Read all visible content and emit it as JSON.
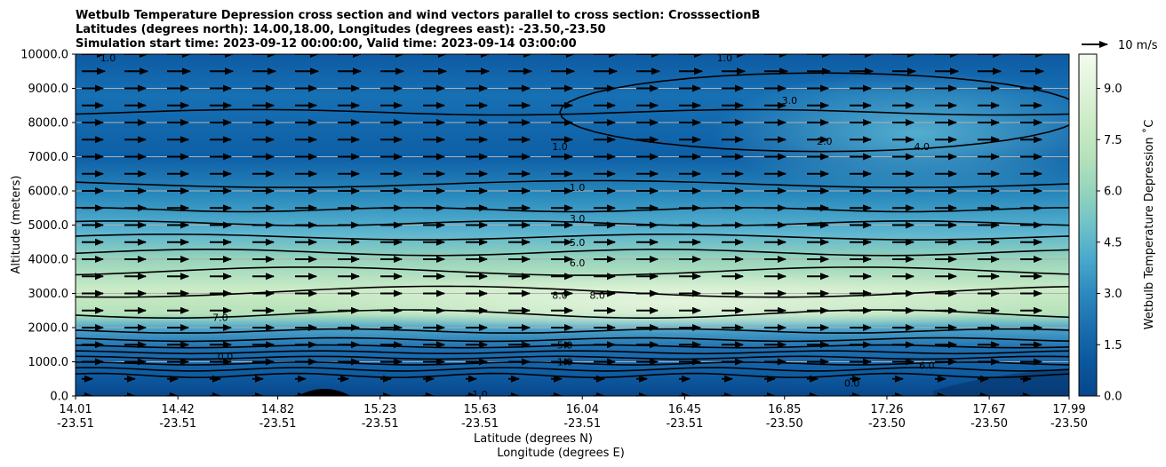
{
  "chart_data": {
    "type": "contour",
    "title_lines": [
      "Wetbulb Temperature Depression cross section and wind vectors parallel to cross section: CrosssectionB",
      "Latitudes (degrees north): 14.00,18.00, Longitudes (degrees east): -23.50,-23.50",
      "Simulation start time: 2023-09-12 00:00:00, Valid time: 2023-09-14 03:00:00"
    ],
    "ylabel": "Altitude (meters)",
    "xlabel_lat": "Latitude (degrees N)",
    "xlabel_lon": "Longitude (degrees E)",
    "ylim": [
      0,
      10000
    ],
    "yticks": [
      "0.0",
      "1000.0",
      "2000.0",
      "3000.0",
      "4000.0",
      "5000.0",
      "6000.0",
      "7000.0",
      "8000.0",
      "9000.0",
      "10000.0"
    ],
    "xticks_lat": [
      "14.01",
      "14.42",
      "14.82",
      "15.23",
      "15.63",
      "16.04",
      "16.45",
      "16.85",
      "17.26",
      "17.67",
      "17.99"
    ],
    "xticks_lon": [
      "-23.51",
      "-23.51",
      "-23.51",
      "-23.51",
      "-23.51",
      "-23.51",
      "-23.51",
      "-23.50",
      "-23.50",
      "-23.50",
      "-23.50"
    ],
    "grid": "horizontal",
    "colorbar": {
      "label": "Wetbulb Temperature Depression ˚C",
      "ticks": [
        "0.0",
        "1.5",
        "3.0",
        "4.5",
        "6.0",
        "7.5",
        "9.0"
      ],
      "range": [
        0,
        10
      ]
    },
    "quiver_key": "10 m/s",
    "contour_labels": [
      {
        "text": "1.0",
        "x": 14.14,
        "y": 9900
      },
      {
        "text": "1.0",
        "x": 15.95,
        "y": 7300
      },
      {
        "text": "1.0",
        "x": 16.02,
        "y": 6100
      },
      {
        "text": "3.0",
        "x": 16.02,
        "y": 5200
      },
      {
        "text": "5.0",
        "x": 16.02,
        "y": 4500
      },
      {
        "text": "6.0",
        "x": 16.02,
        "y": 3900
      },
      {
        "text": "8.0",
        "x": 15.95,
        "y": 2950
      },
      {
        "text": "8.0",
        "x": 16.1,
        "y": 2950
      },
      {
        "text": "7.0",
        "x": 14.59,
        "y": 2300
      },
      {
        "text": "2.0",
        "x": 17.01,
        "y": 7450
      },
      {
        "text": "3.0",
        "x": 16.87,
        "y": 8650
      },
      {
        "text": "4.0",
        "x": 17.4,
        "y": 7300
      },
      {
        "text": "1.0",
        "x": 16.61,
        "y": 9900
      },
      {
        "text": "5.0",
        "x": 15.97,
        "y": 1500
      },
      {
        "text": "1.0",
        "x": 15.97,
        "y": 1000
      },
      {
        "text": "0.0",
        "x": 14.61,
        "y": 1150
      },
      {
        "text": "1.0",
        "x": 15.63,
        "y": 50
      },
      {
        "text": "0.0",
        "x": 17.12,
        "y": 380
      },
      {
        "text": "6.0",
        "x": 17.42,
        "y": 900
      }
    ]
  }
}
